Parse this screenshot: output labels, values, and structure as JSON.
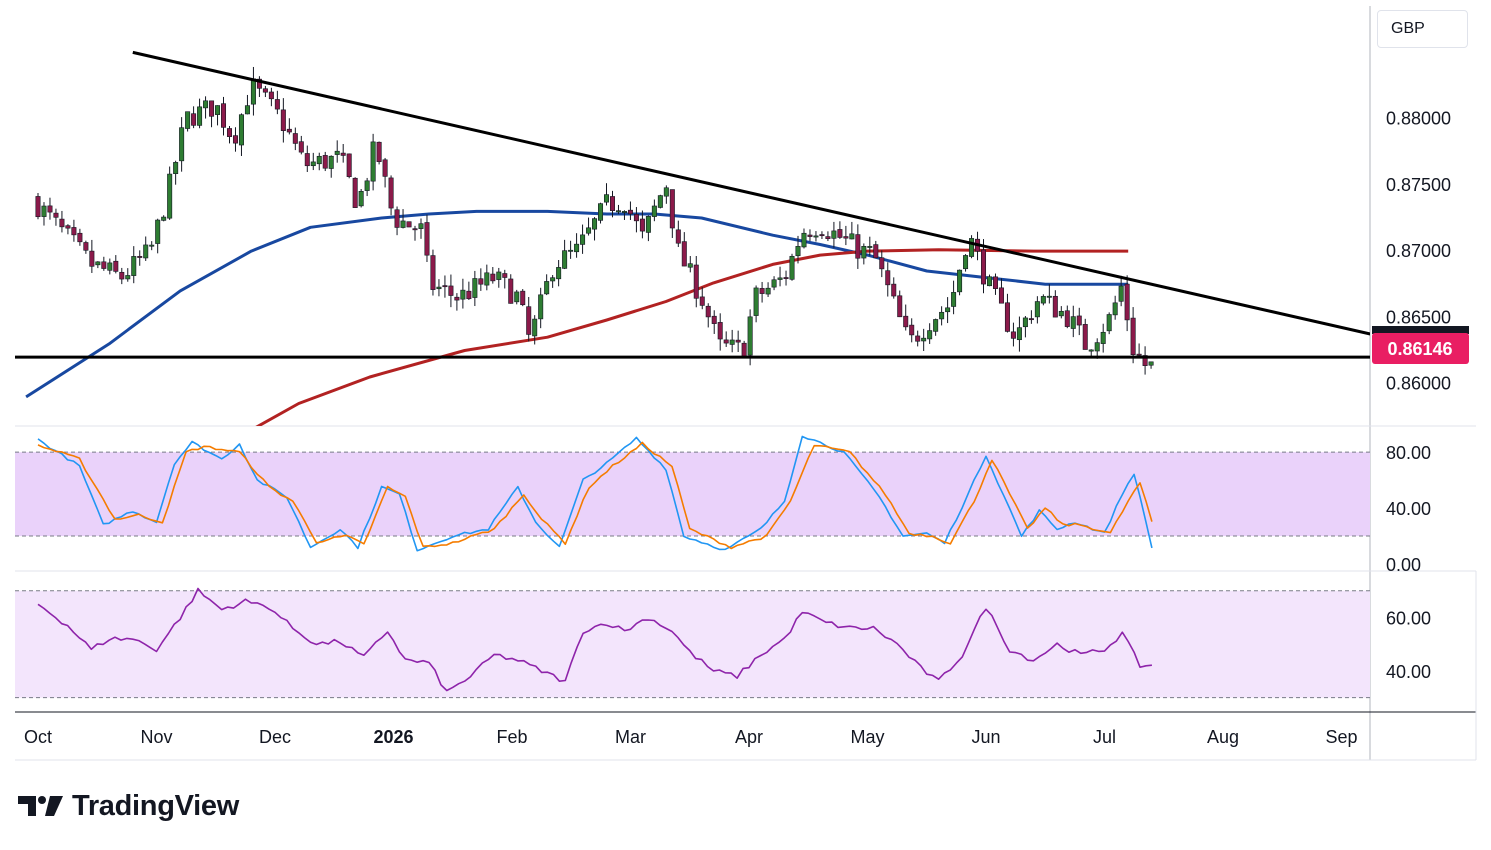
{
  "currency": "GBP",
  "brand": {
    "name": "TradingView"
  },
  "price_label": "0.86146",
  "chart_data": [
    {
      "type": "candlestick",
      "title": "",
      "x": [
        "Oct",
        "Nov",
        "Dec",
        "2026",
        "Feb",
        "Mar",
        "Apr",
        "May",
        "Jun",
        "Jul",
        "Aug",
        "Sep"
      ],
      "price_axis_ticks": [
        "0.88000",
        "0.87500",
        "0.87000",
        "0.86500",
        "0.86000"
      ],
      "ylim": [
        0.8568,
        0.8885
      ],
      "current_price": 0.86146,
      "support_level": 0.862,
      "trendline": [
        {
          "x": 0.8,
          "y": 0.885
        },
        {
          "x": 12.0,
          "y": 0.8622
        }
      ],
      "anchors": [
        [
          0.0,
          0.874
        ],
        [
          0.35,
          0.8705
        ],
        [
          0.5,
          0.869
        ],
        [
          0.75,
          0.868
        ],
        [
          1.0,
          0.87
        ],
        [
          1.15,
          0.8745
        ],
        [
          1.3,
          0.88
        ],
        [
          1.55,
          0.881
        ],
        [
          1.7,
          0.8785
        ],
        [
          1.85,
          0.8825
        ],
        [
          2.0,
          0.881
        ],
        [
          2.1,
          0.88
        ],
        [
          2.3,
          0.8765
        ],
        [
          2.6,
          0.877
        ],
        [
          2.75,
          0.8735
        ],
        [
          2.9,
          0.878
        ],
        [
          3.05,
          0.8725
        ],
        [
          3.3,
          0.8715
        ],
        [
          3.35,
          0.8675
        ],
        [
          3.6,
          0.8665
        ],
        [
          3.9,
          0.868
        ],
        [
          4.1,
          0.8665
        ],
        [
          4.2,
          0.8632
        ],
        [
          4.4,
          0.869
        ],
        [
          4.6,
          0.87
        ],
        [
          4.85,
          0.8735
        ],
        [
          5.0,
          0.8738
        ],
        [
          5.15,
          0.871
        ],
        [
          5.35,
          0.8752
        ],
        [
          5.45,
          0.87
        ],
        [
          5.65,
          0.8665
        ],
        [
          5.8,
          0.8628
        ],
        [
          6.0,
          0.8625
        ],
        [
          6.1,
          0.8665
        ],
        [
          6.35,
          0.868
        ],
        [
          6.5,
          0.8715
        ],
        [
          6.65,
          0.872
        ],
        [
          7.0,
          0.87
        ],
        [
          7.1,
          0.8698
        ],
        [
          7.25,
          0.8665
        ],
        [
          7.4,
          0.863
        ],
        [
          7.6,
          0.865
        ],
        [
          7.75,
          0.866
        ],
        [
          7.9,
          0.8713
        ],
        [
          8.1,
          0.8668
        ],
        [
          8.3,
          0.8635
        ],
        [
          8.5,
          0.8665
        ],
        [
          8.75,
          0.865
        ],
        [
          8.9,
          0.8628
        ],
        [
          9.1,
          0.865
        ],
        [
          9.2,
          0.8675
        ],
        [
          9.28,
          0.8628
        ],
        [
          9.4,
          0.8613
        ]
      ],
      "series": [
        {
          "name": "",
          "color": "#1848a0",
          "points": [
            [
              -0.1,
              0.859
            ],
            [
              0.6,
              0.863
            ],
            [
              1.2,
              0.867
            ],
            [
              1.8,
              0.87
            ],
            [
              2.3,
              0.8718
            ],
            [
              2.9,
              0.8725
            ],
            [
              3.3,
              0.8728
            ],
            [
              3.7,
              0.873
            ],
            [
              4.3,
              0.873
            ],
            [
              4.8,
              0.8728
            ],
            [
              5.2,
              0.8728
            ],
            [
              5.6,
              0.8725
            ],
            [
              6.2,
              0.8712
            ],
            [
              6.6,
              0.8705
            ],
            [
              7.0,
              0.8697
            ],
            [
              7.5,
              0.8685
            ],
            [
              8.0,
              0.868
            ],
            [
              8.5,
              0.8675
            ],
            [
              9.2,
              0.8675
            ]
          ]
        },
        {
          "name": "",
          "color": "#b22222",
          "points": [
            [
              1.6,
              0.8555
            ],
            [
              2.2,
              0.8585
            ],
            [
              2.8,
              0.8605
            ],
            [
              3.6,
              0.8625
            ],
            [
              4.3,
              0.8635
            ],
            [
              4.8,
              0.8648
            ],
            [
              5.3,
              0.8662
            ],
            [
              5.7,
              0.8676
            ],
            [
              6.2,
              0.869
            ],
            [
              6.6,
              0.8697
            ],
            [
              7.0,
              0.87
            ],
            [
              7.6,
              0.8701
            ],
            [
              8.4,
              0.87
            ],
            [
              9.2,
              0.87
            ]
          ]
        }
      ]
    },
    {
      "type": "line",
      "title": "",
      "y_ticks": [
        "80.00",
        "40.00",
        "0.00"
      ],
      "ylim": [
        -5,
        98
      ],
      "band": [
        20,
        80
      ],
      "series": [
        {
          "name": "",
          "color": "#2196f3",
          "anchors": [
            [
              0,
              89
            ],
            [
              0.35,
              70
            ],
            [
              0.55,
              28
            ],
            [
              0.8,
              38
            ],
            [
              1.0,
              30
            ],
            [
              1.15,
              72
            ],
            [
              1.3,
              87
            ],
            [
              1.55,
              75
            ],
            [
              1.7,
              86
            ],
            [
              1.85,
              60
            ],
            [
              2.1,
              48
            ],
            [
              2.3,
              12
            ],
            [
              2.55,
              25
            ],
            [
              2.7,
              12
            ],
            [
              2.9,
              55
            ],
            [
              3.05,
              50
            ],
            [
              3.2,
              10
            ],
            [
              3.5,
              20
            ],
            [
              3.8,
              25
            ],
            [
              4.05,
              55
            ],
            [
              4.2,
              30
            ],
            [
              4.4,
              12
            ],
            [
              4.6,
              60
            ],
            [
              4.8,
              72
            ],
            [
              5.05,
              90
            ],
            [
              5.3,
              68
            ],
            [
              5.45,
              20
            ],
            [
              5.8,
              10
            ],
            [
              6.1,
              25
            ],
            [
              6.3,
              45
            ],
            [
              6.45,
              92
            ],
            [
              6.8,
              80
            ],
            [
              7.1,
              48
            ],
            [
              7.3,
              20
            ],
            [
              7.5,
              22
            ],
            [
              7.65,
              15
            ],
            [
              7.85,
              50
            ],
            [
              8.0,
              78
            ],
            [
              8.3,
              20
            ],
            [
              8.45,
              38
            ],
            [
              8.6,
              25
            ],
            [
              8.75,
              30
            ],
            [
              9.0,
              22
            ],
            [
              9.15,
              50
            ],
            [
              9.25,
              65
            ],
            [
              9.4,
              12
            ]
          ]
        },
        {
          "name": "",
          "color": "#f57c00",
          "anchors": [
            [
              0,
              85
            ],
            [
              0.35,
              75
            ],
            [
              0.65,
              32
            ],
            [
              0.85,
              35
            ],
            [
              1.05,
              30
            ],
            [
              1.25,
              80
            ],
            [
              1.4,
              84
            ],
            [
              1.7,
              80
            ],
            [
              1.95,
              55
            ],
            [
              2.15,
              45
            ],
            [
              2.35,
              16
            ],
            [
              2.6,
              20
            ],
            [
              2.75,
              14
            ],
            [
              2.95,
              55
            ],
            [
              3.1,
              48
            ],
            [
              3.25,
              12
            ],
            [
              3.5,
              15
            ],
            [
              3.85,
              25
            ],
            [
              4.1,
              50
            ],
            [
              4.25,
              32
            ],
            [
              4.45,
              15
            ],
            [
              4.65,
              55
            ],
            [
              4.85,
              70
            ],
            [
              5.1,
              86
            ],
            [
              5.35,
              70
            ],
            [
              5.5,
              25
            ],
            [
              5.85,
              12
            ],
            [
              6.15,
              20
            ],
            [
              6.35,
              45
            ],
            [
              6.55,
              85
            ],
            [
              6.85,
              80
            ],
            [
              7.15,
              50
            ],
            [
              7.35,
              22
            ],
            [
              7.55,
              20
            ],
            [
              7.7,
              15
            ],
            [
              7.9,
              45
            ],
            [
              8.05,
              75
            ],
            [
              8.35,
              25
            ],
            [
              8.5,
              40
            ],
            [
              8.65,
              28
            ],
            [
              8.8,
              28
            ],
            [
              9.05,
              22
            ],
            [
              9.2,
              45
            ],
            [
              9.3,
              58
            ],
            [
              9.4,
              30
            ]
          ]
        }
      ]
    },
    {
      "type": "line",
      "title": "",
      "y_ticks": [
        "60.00",
        "40.00"
      ],
      "ylim": [
        25,
        77
      ],
      "band": [
        30,
        70
      ],
      "series": [
        {
          "name": "",
          "color": "#8e24aa",
          "anchors": [
            [
              0,
              65
            ],
            [
              0.25,
              57
            ],
            [
              0.45,
              48
            ],
            [
              0.6,
              52
            ],
            [
              0.8,
              52
            ],
            [
              1.0,
              48
            ],
            [
              1.2,
              60
            ],
            [
              1.35,
              70
            ],
            [
              1.55,
              63
            ],
            [
              1.75,
              66
            ],
            [
              1.95,
              64
            ],
            [
              2.15,
              56
            ],
            [
              2.35,
              50
            ],
            [
              2.55,
              51
            ],
            [
              2.75,
              45
            ],
            [
              2.95,
              55
            ],
            [
              3.1,
              44
            ],
            [
              3.3,
              43
            ],
            [
              3.45,
              32
            ],
            [
              3.65,
              38
            ],
            [
              3.85,
              46
            ],
            [
              4.05,
              44
            ],
            [
              4.25,
              40
            ],
            [
              4.45,
              36
            ],
            [
              4.6,
              55
            ],
            [
              4.8,
              58
            ],
            [
              4.95,
              55
            ],
            [
              5.15,
              60
            ],
            [
              5.35,
              55
            ],
            [
              5.5,
              47
            ],
            [
              5.7,
              40
            ],
            [
              5.9,
              38
            ],
            [
              6.1,
              46
            ],
            [
              6.3,
              52
            ],
            [
              6.45,
              62
            ],
            [
              6.65,
              58
            ],
            [
              6.85,
              56
            ],
            [
              7.05,
              56
            ],
            [
              7.25,
              50
            ],
            [
              7.45,
              41
            ],
            [
              7.6,
              36
            ],
            [
              7.8,
              46
            ],
            [
              8.0,
              64
            ],
            [
              8.2,
              48
            ],
            [
              8.4,
              44
            ],
            [
              8.6,
              50
            ],
            [
              8.8,
              46
            ],
            [
              9.0,
              48
            ],
            [
              9.15,
              54
            ],
            [
              9.3,
              42
            ]
          ]
        }
      ]
    }
  ]
}
